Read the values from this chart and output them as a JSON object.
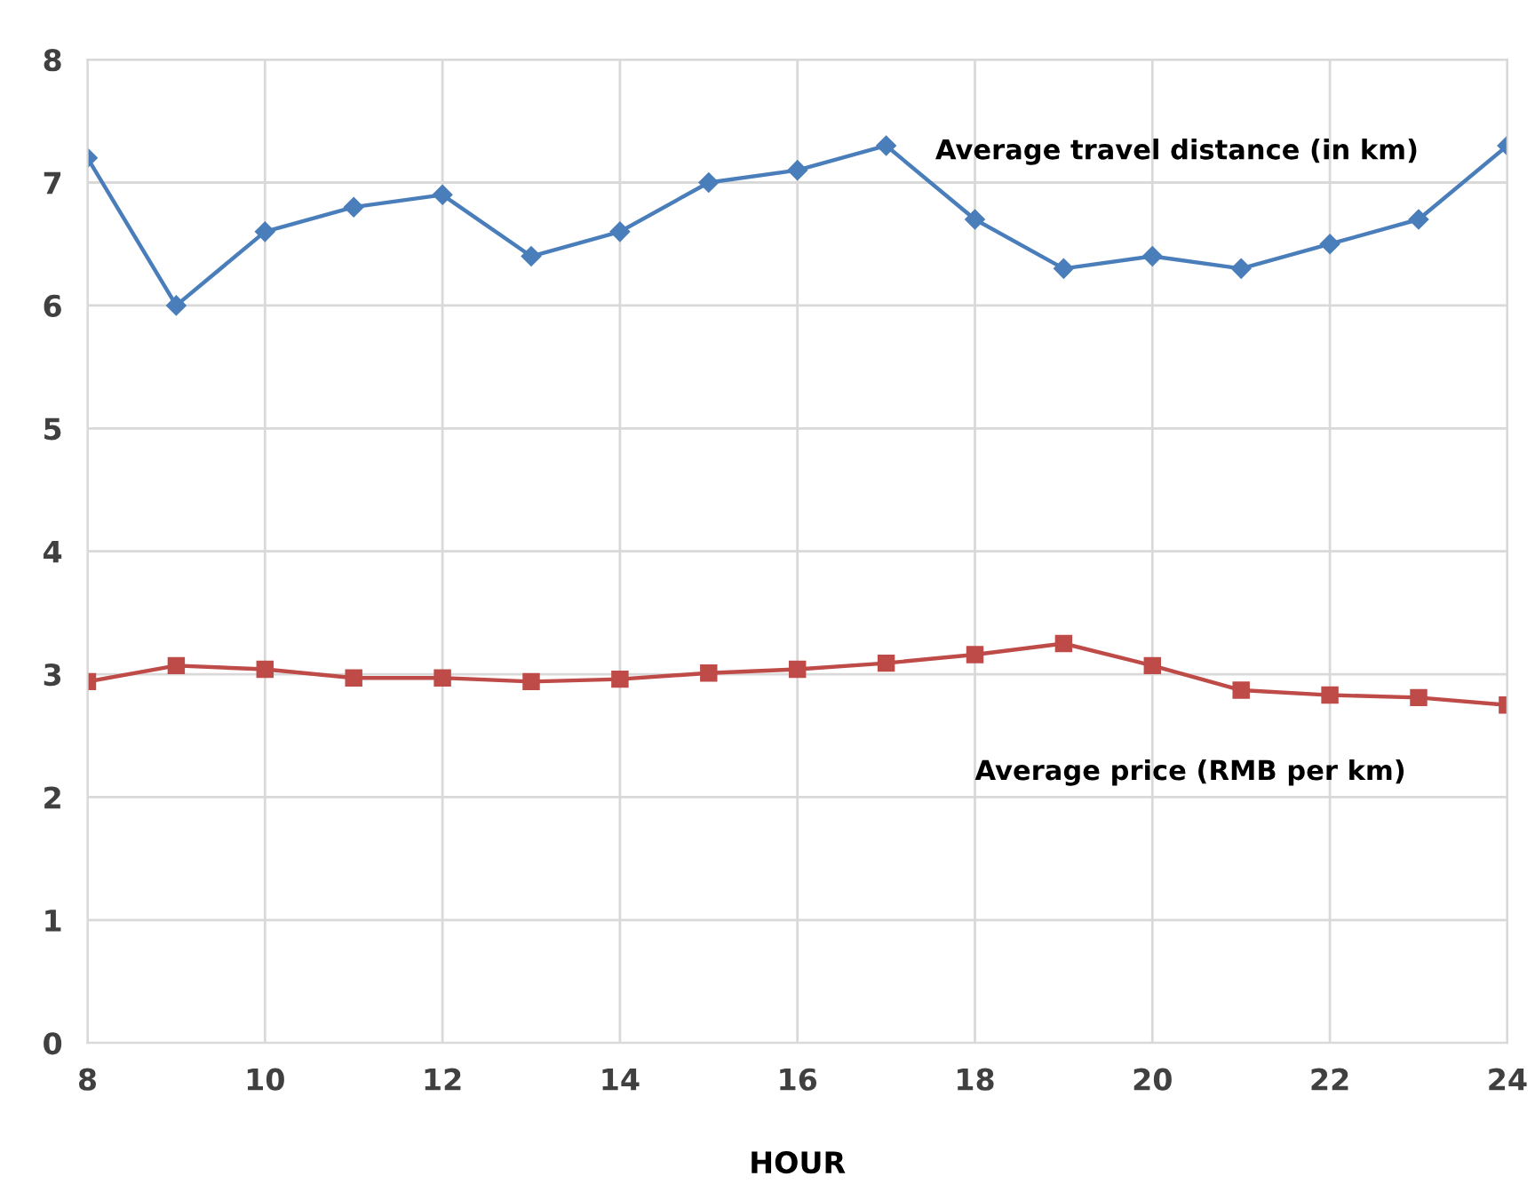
{
  "chart_data": {
    "type": "line",
    "xlabel": "HOUR",
    "x": [
      8,
      9,
      10,
      11,
      12,
      13,
      14,
      15,
      16,
      17,
      18,
      19,
      20,
      21,
      22,
      23,
      24
    ],
    "series": [
      {
        "name": "Average travel distance (in km)",
        "color": "#4a7ebb",
        "marker": "diamond",
        "values": [
          7.2,
          6.0,
          6.6,
          6.8,
          6.9,
          6.4,
          6.6,
          7.0,
          7.1,
          7.3,
          6.7,
          6.3,
          6.4,
          6.3,
          6.5,
          6.7,
          7.3
        ]
      },
      {
        "name": "Average price (RMB per km)",
        "color": "#be4b48",
        "marker": "square",
        "values": [
          2.94,
          3.07,
          3.04,
          2.97,
          2.97,
          2.94,
          2.96,
          3.01,
          3.04,
          3.09,
          3.16,
          3.25,
          3.07,
          2.87,
          2.83,
          2.81,
          2.75
        ]
      }
    ],
    "xlim": [
      8,
      24
    ],
    "ylim": [
      0,
      8
    ],
    "xticks": [
      8,
      10,
      12,
      14,
      16,
      18,
      20,
      22,
      24
    ],
    "yticks": [
      0,
      1,
      2,
      3,
      4,
      5,
      6,
      7,
      8
    ],
    "grid": true,
    "legend": false
  }
}
